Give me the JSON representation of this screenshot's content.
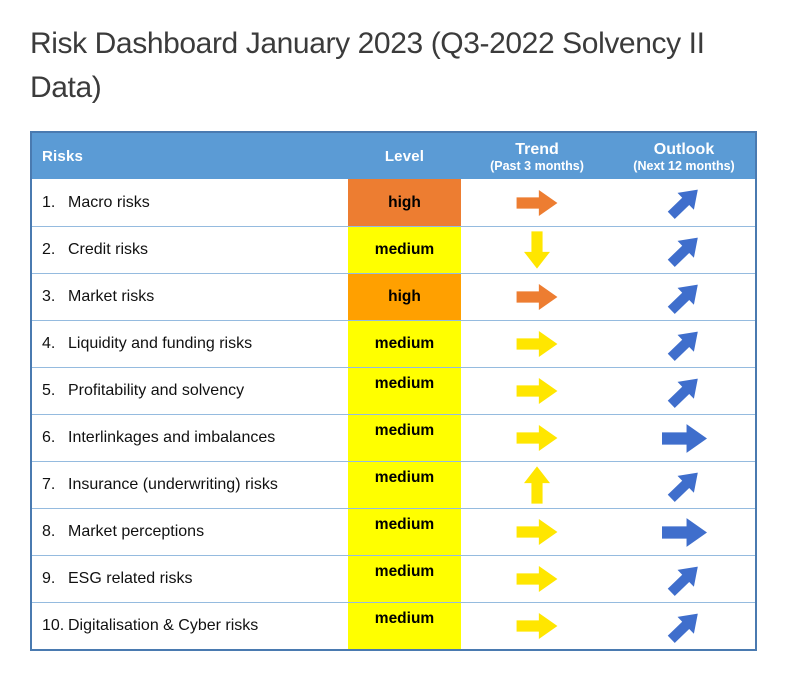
{
  "page": {
    "title": "Risk Dashboard January 2023 (Q3-2022 Solvency II Data)"
  },
  "colors": {
    "header_bg": "#5b9bd5",
    "outer_border": "#4a7ab0",
    "row_border": "#95bbdf",
    "high_orange_1": "#ed7d31",
    "high_orange_2": "#ffa000",
    "medium_yellow": "#ffff00",
    "trend_orange": "#ed7d31",
    "trend_yellow": "#ffe600",
    "outlook_blue": "#3f6ecc"
  },
  "table": {
    "headers": {
      "risks": "Risks",
      "level": "Level",
      "trend": "Trend",
      "trend_sub": "(Past 3 months)",
      "outlook": "Outlook",
      "outlook_sub": "(Next 12 months)"
    },
    "rows": [
      {
        "num": "1.",
        "name": "Macro risks",
        "level": "high",
        "level_color": "#ed7d31",
        "trend": "right",
        "trend_color": "#ed7d31",
        "outlook": "up-right",
        "outlook_color": "#3f6ecc"
      },
      {
        "num": "2.",
        "name": "Credit risks",
        "level": "medium",
        "level_color": "#ffff00",
        "trend": "down",
        "trend_color": "#ffe600",
        "outlook": "up-right",
        "outlook_color": "#3f6ecc"
      },
      {
        "num": "3.",
        "name": "Market risks",
        "level": "high",
        "level_color": "#ffa000",
        "trend": "right",
        "trend_color": "#ed7d31",
        "outlook": "up-right",
        "outlook_color": "#3f6ecc"
      },
      {
        "num": "4.",
        "name": "Liquidity and funding risks",
        "level": "medium",
        "level_color": "#ffff00",
        "trend": "right",
        "trend_color": "#ffe600",
        "outlook": "up-right",
        "outlook_color": "#3f6ecc"
      },
      {
        "num": "5.",
        "name": "Profitability and solvency",
        "level": "medium",
        "level_color": "#ffff00",
        "trend": "right",
        "trend_color": "#ffe600",
        "outlook": "up-right",
        "outlook_color": "#3f6ecc"
      },
      {
        "num": "6.",
        "name": "Interlinkages and imbalances",
        "level": "medium",
        "level_color": "#ffff00",
        "trend": "right",
        "trend_color": "#ffe600",
        "outlook": "right",
        "outlook_color": "#3f6ecc"
      },
      {
        "num": "7.",
        "name": "Insurance (underwriting) risks",
        "level": "medium",
        "level_color": "#ffff00",
        "trend": "up",
        "trend_color": "#ffe600",
        "outlook": "up-right",
        "outlook_color": "#3f6ecc"
      },
      {
        "num": "8.",
        "name": "Market perceptions",
        "level": "medium",
        "level_color": "#ffff00",
        "trend": "right",
        "trend_color": "#ffe600",
        "outlook": "right",
        "outlook_color": "#3f6ecc"
      },
      {
        "num": "9.",
        "name": "ESG related risks",
        "level": "medium",
        "level_color": "#ffff00",
        "trend": "right",
        "trend_color": "#ffe600",
        "outlook": "up-right",
        "outlook_color": "#3f6ecc"
      },
      {
        "num": "10.",
        "name": "Digitalisation & Cyber risks",
        "level": "medium",
        "level_color": "#ffff00",
        "trend": "right",
        "trend_color": "#ffe600",
        "outlook": "up-right",
        "outlook_color": "#3f6ecc"
      }
    ]
  },
  "chart_data": {
    "type": "table",
    "title": "Risk Dashboard January 2023 (Q3-2022 Solvency II Data)",
    "columns": [
      "Risks",
      "Level",
      "Trend (Past 3 months)",
      "Outlook (Next 12 months)"
    ],
    "rows": [
      [
        "1. Macro risks",
        "high",
        "stable",
        "increase"
      ],
      [
        "2. Credit risks",
        "medium",
        "decrease",
        "increase"
      ],
      [
        "3. Market risks",
        "high",
        "stable",
        "increase"
      ],
      [
        "4. Liquidity and funding risks",
        "medium",
        "stable",
        "increase"
      ],
      [
        "5. Profitability and solvency",
        "medium",
        "stable",
        "increase"
      ],
      [
        "6. Interlinkages and imbalances",
        "medium",
        "stable",
        "stable"
      ],
      [
        "7. Insurance (underwriting) risks",
        "medium",
        "increase",
        "increase"
      ],
      [
        "8. Market perceptions",
        "medium",
        "stable",
        "stable"
      ],
      [
        "9. ESG related risks",
        "medium",
        "stable",
        "increase"
      ],
      [
        "10. Digitalisation & Cyber risks",
        "medium",
        "stable",
        "increase"
      ]
    ]
  }
}
